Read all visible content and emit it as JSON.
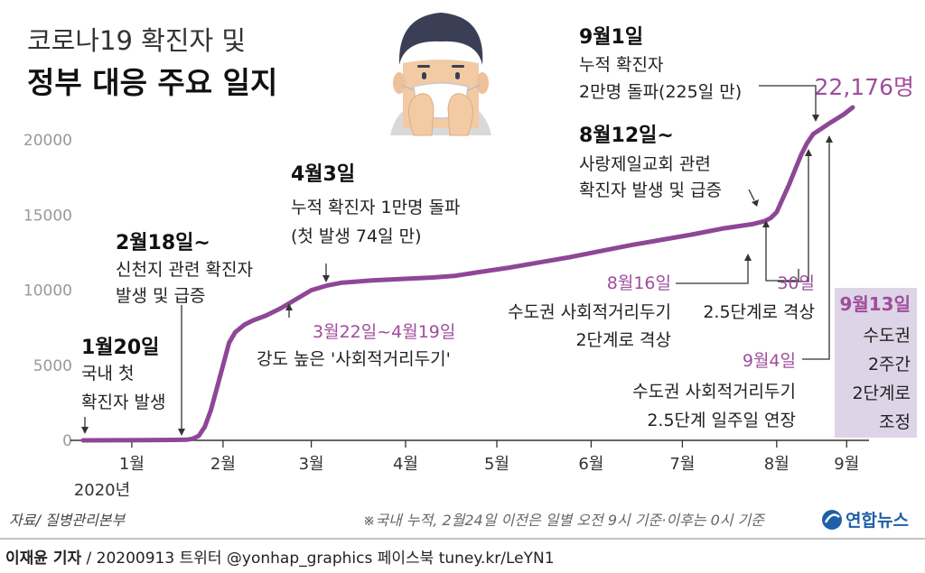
{
  "title": {
    "line1": "코로나19 확진자 및",
    "line2": "정부 대응 주요 일지"
  },
  "chart_data": {
    "type": "line",
    "title": "코로나19 확진자 및 정부 대응 주요 일지",
    "xlabel": "",
    "ylabel": "",
    "ylim": [
      0,
      22500
    ],
    "y_ticks": [
      0,
      5000,
      10000,
      15000,
      20000
    ],
    "y_tick_labels": [
      "0",
      "5000",
      "10000",
      "15000",
      "20000"
    ],
    "x_ticks": [
      {
        "label": "1월",
        "day": 16
      },
      {
        "label": "2월",
        "day": 46
      },
      {
        "label": "3월",
        "day": 75
      },
      {
        "label": "4월",
        "day": 106
      },
      {
        "label": "5월",
        "day": 136
      },
      {
        "label": "6월",
        "day": 167
      },
      {
        "label": "7월",
        "day": 197
      },
      {
        "label": "8월",
        "day": 228
      },
      {
        "label": "9월",
        "day": 251
      }
    ],
    "x_sub_label": "2020년",
    "x_range": [
      -2,
      257
    ],
    "grid": false,
    "line_color": "#8e4796",
    "points": [
      [
        0,
        1
      ],
      [
        10,
        5
      ],
      [
        20,
        20
      ],
      [
        30,
        30
      ],
      [
        34,
        40
      ],
      [
        36,
        100
      ],
      [
        38,
        300
      ],
      [
        40,
        900
      ],
      [
        42,
        2000
      ],
      [
        44,
        3500
      ],
      [
        46,
        5000
      ],
      [
        48,
        6500
      ],
      [
        50,
        7200
      ],
      [
        53,
        7700
      ],
      [
        56,
        8000
      ],
      [
        60,
        8300
      ],
      [
        65,
        8800
      ],
      [
        70,
        9400
      ],
      [
        75,
        10000
      ],
      [
        80,
        10300
      ],
      [
        85,
        10500
      ],
      [
        95,
        10650
      ],
      [
        105,
        10750
      ],
      [
        115,
        10850
      ],
      [
        122,
        10950
      ],
      [
        130,
        11200
      ],
      [
        140,
        11500
      ],
      [
        150,
        11850
      ],
      [
        160,
        12200
      ],
      [
        170,
        12600
      ],
      [
        180,
        13000
      ],
      [
        190,
        13350
      ],
      [
        200,
        13700
      ],
      [
        210,
        14100
      ],
      [
        220,
        14400
      ],
      [
        224,
        14600
      ],
      [
        226,
        14800
      ],
      [
        228,
        15200
      ],
      [
        230,
        16100
      ],
      [
        232,
        17000
      ],
      [
        234,
        18000
      ],
      [
        236,
        19000
      ],
      [
        238,
        19800
      ],
      [
        240,
        20400
      ],
      [
        243,
        20800
      ],
      [
        246,
        21200
      ],
      [
        250,
        21700
      ],
      [
        253,
        22176
      ]
    ],
    "end_label": "22,176명"
  },
  "annotations": {
    "jan20": {
      "date": "1월20일",
      "lines": [
        "국내 첫",
        "확진자 발생"
      ]
    },
    "feb18": {
      "date": "2월18일~",
      "lines": [
        "신천지 관련 확진자",
        "발생 및 급증"
      ]
    },
    "mar22": {
      "date": "3월22일~4월19일",
      "lines": [
        "강도 높은 '사회적거리두기'"
      ]
    },
    "apr3": {
      "date": "4월3일",
      "lines": [
        "누적 확진자 1만명 돌파",
        "(첫 발생 74일 만)"
      ]
    },
    "aug12": {
      "date": "8월12일~",
      "lines": [
        "사랑제일교회 관련",
        "확진자 발생 및 급증"
      ]
    },
    "aug16": {
      "date": "8월16일",
      "lines": [
        "수도권 사회적거리두기",
        "2단계로 격상"
      ]
    },
    "aug30": {
      "date": "30일",
      "lines": [
        "2.5단계로 격상"
      ]
    },
    "sep1": {
      "date": "9월1일",
      "lines": [
        "누적 확진자",
        "2만명 돌파(225일 만)"
      ]
    },
    "sep4": {
      "date": "9월4일",
      "lines": [
        "수도권 사회적거리두기",
        "2.5단계 일주일 연장"
      ]
    },
    "sep13": {
      "date": "9월13일",
      "lines": [
        "수도권",
        "2주간",
        "2단계로",
        "조정"
      ]
    }
  },
  "footer": {
    "source": "자료/ 질병관리본부",
    "note": "※국내 누적, 2월24일 이전은 일별 오전 9시 기준·이후는 0시 기준",
    "logo_text": "연합뉴스",
    "credit_name": "이재윤 기자",
    "credit_rest": " / 20200913   트위터 @yonhap_graphics  페이스북 tuney.kr/LeYN1"
  },
  "colors": {
    "line": "#8e4796",
    "accent_text": "#a04d9c",
    "highlight_box": "#ddd5e7",
    "axis": "#333333"
  }
}
